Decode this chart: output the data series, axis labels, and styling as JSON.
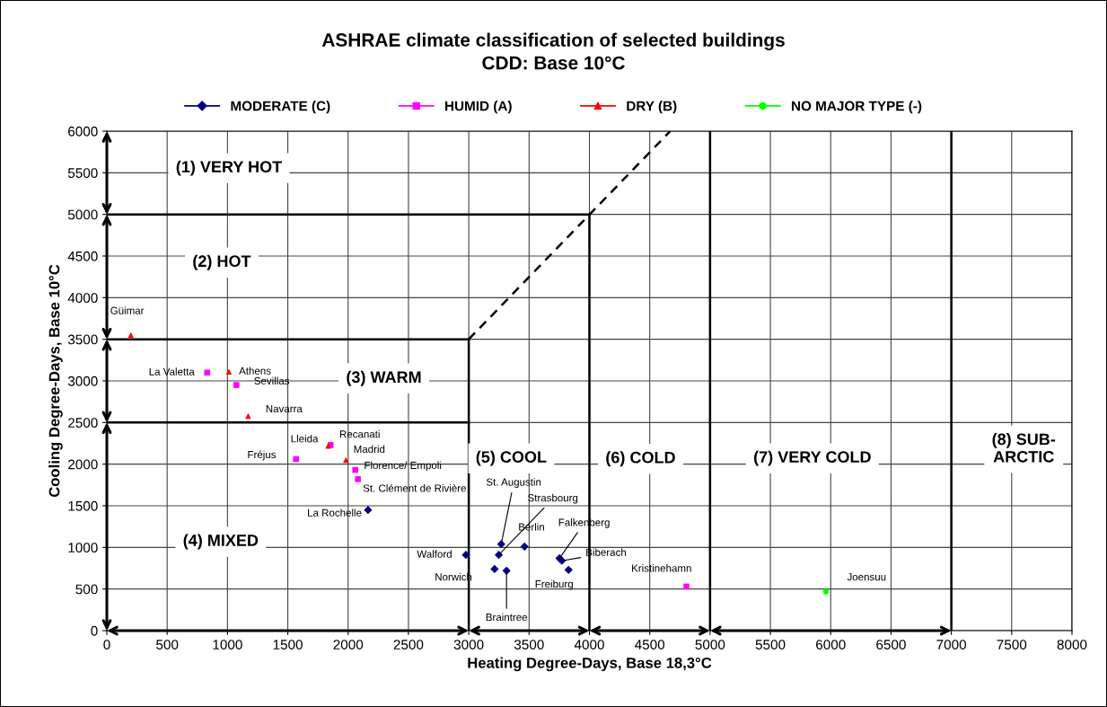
{
  "chart_data": {
    "type": "scatter",
    "title": "ASHRAE climate classification of selected buildings\nCDD: Base 10°C",
    "xlabel": "Heating Degree-Days, Base 18,3°C",
    "ylabel": "Cooling Degree-Days, Base 10°C",
    "xlim": [
      0,
      8000
    ],
    "xticks": [
      0,
      500,
      1000,
      1500,
      2000,
      2500,
      3000,
      3500,
      4000,
      4500,
      5000,
      5500,
      6000,
      6500,
      7000,
      7500,
      8000
    ],
    "ylim": [
      0,
      6000
    ],
    "yticks": [
      0,
      500,
      1000,
      1500,
      2000,
      2500,
      3000,
      3500,
      4000,
      4500,
      5000,
      5500,
      6000
    ],
    "grid": true,
    "legend": "top",
    "series": [
      {
        "name": "MODERATE (C)",
        "color": "#000080",
        "marker": "diamond",
        "x": [
          2165,
          2976,
          3269,
          3249,
          3462,
          3214,
          3313,
          3752,
          3772,
          3827
        ],
        "values": [
          1450,
          910,
          1040,
          910,
          1010,
          740,
          720,
          870,
          840,
          730
        ]
      },
      {
        "name": "HUMID (A)",
        "color": "#ff00ff",
        "marker": "square",
        "x": [
          831,
          1074,
          1855,
          1568,
          2059,
          2081,
          4804
        ],
        "values": [
          3100,
          2950,
          2230,
          2060,
          1930,
          1820,
          530
        ]
      },
      {
        "name": "DRY (B)",
        "color": "#ff0000",
        "marker": "triangle",
        "x": [
          199,
          1012,
          1171,
          1835,
          1982
        ],
        "values": [
          3550,
          3110,
          2580,
          2220,
          2050
        ]
      },
      {
        "name": "NO MAJOR TYPE (-)",
        "color": "#00ff00",
        "marker": "circle",
        "x": [
          5960
        ],
        "values": [
          470
        ]
      },
      {
        "type": "line",
        "color": "#000000",
        "line_style": "solid",
        "x": [
          0,
          4000
        ],
        "values": [
          5000,
          5000
        ]
      },
      {
        "type": "line",
        "color": "#000000",
        "line_style": "solid",
        "x": [
          0,
          3000
        ],
        "values": [
          3500,
          3500
        ]
      },
      {
        "type": "line",
        "color": "#000000",
        "line_style": "solid",
        "x": [
          0,
          3000
        ],
        "values": [
          2500,
          2500
        ]
      },
      {
        "type": "line",
        "color": "#000000",
        "line_style": "solid",
        "x": [
          3000,
          3000
        ],
        "values": [
          0,
          3500
        ]
      },
      {
        "type": "line",
        "color": "#000000",
        "line_style": "solid",
        "x": [
          4000,
          4000
        ],
        "values": [
          0,
          5000
        ]
      },
      {
        "type": "line",
        "color": "#000000",
        "line_style": "solid",
        "x": [
          5000,
          5000
        ],
        "values": [
          0,
          6000
        ]
      },
      {
        "type": "line",
        "color": "#000000",
        "line_style": "solid",
        "x": [
          7000,
          7000
        ],
        "values": [
          0,
          6000
        ]
      },
      {
        "type": "line",
        "color": "#000000",
        "line_style": "dashed",
        "x": [
          3000,
          4670
        ],
        "values": [
          3500,
          6000
        ]
      }
    ],
    "annotations": [
      "(1) VERY HOT",
      "(2) HOT",
      "(3) WARM",
      "(4) MIXED",
      "(5) COOL",
      "(6) COLD",
      "(7) VERY COLD",
      "(8) SUB-\nARCTIC",
      {
        "text": "Güimar",
        "x": 199,
        "y": 3550
      },
      {
        "text": "La Valetta",
        "x": 831,
        "y": 3100
      },
      {
        "text": "Athens",
        "x": 1012,
        "y": 3110
      },
      {
        "text": "Sevillas",
        "x": 1074,
        "y": 2945
      },
      {
        "text": "Navarra",
        "x": 1171,
        "y": 2580
      },
      {
        "text": "Lleida",
        "x": 1835,
        "y": 2220
      },
      {
        "text": "Recanati",
        "x": 1855,
        "y": 2230
      },
      {
        "text": "Fréjus",
        "x": 1568,
        "y": 2060
      },
      {
        "text": "Madrid",
        "x": 1982,
        "y": 2050
      },
      {
        "text": "Florence/ Empoli",
        "x": 2059,
        "y": 1930
      },
      {
        "text": "St. Clément de Rivière",
        "x": 2081,
        "y": 1820
      },
      {
        "text": "La Rochelle",
        "x": 2165,
        "y": 1450
      },
      {
        "text": "Walford",
        "x": 2976,
        "y": 910
      },
      {
        "text": "Norwich",
        "x": 3214,
        "y": 740
      },
      {
        "text": "Braintree",
        "x": 3313,
        "y": 720
      },
      {
        "text": "St. Augustin",
        "x": 3269,
        "y": 1040
      },
      {
        "text": "Strasbourg",
        "x": 3249,
        "y": 910
      },
      {
        "text": "Berlin",
        "x": 3462,
        "y": 1010
      },
      {
        "text": "Falkenberg",
        "x": 3752,
        "y": 870
      },
      {
        "text": "Biberach",
        "x": 3772,
        "y": 840
      },
      {
        "text": "Freiburg",
        "x": 3827,
        "y": 730
      },
      {
        "text": "Kristinehamn",
        "x": 4804,
        "y": 530
      },
      {
        "text": "Joensuu",
        "x": 5960,
        "y": 470
      }
    ]
  }
}
